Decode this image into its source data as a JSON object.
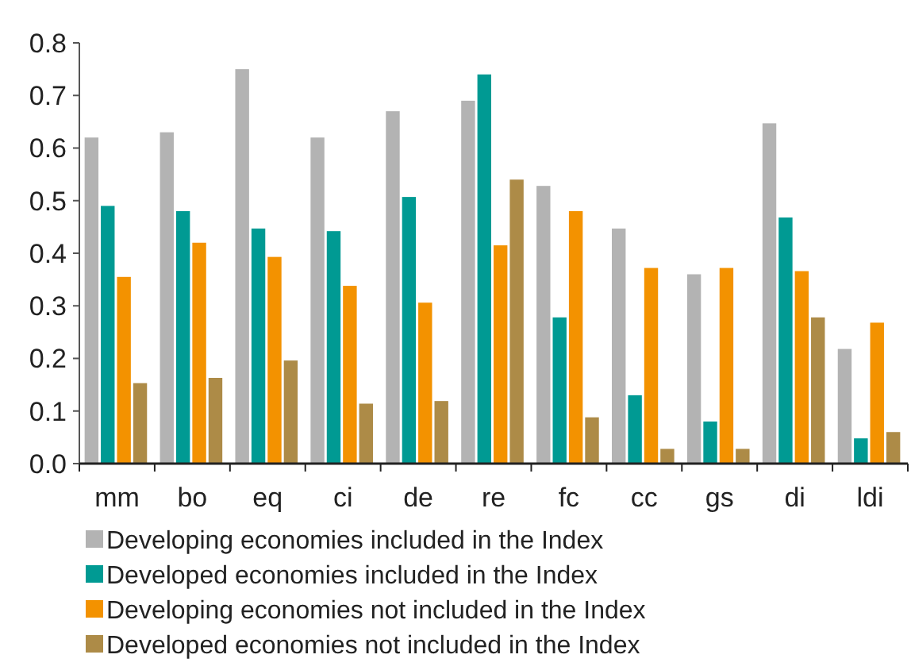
{
  "chart_data": {
    "type": "bar",
    "categories": [
      "mm",
      "bo",
      "eq",
      "ci",
      "de",
      "re",
      "fc",
      "cc",
      "gs",
      "di",
      "ldi"
    ],
    "series": [
      {
        "name": "Developing economies included in the Index",
        "color": "#b3b3b3",
        "values": [
          0.62,
          0.63,
          0.75,
          0.62,
          0.67,
          0.69,
          0.528,
          0.447,
          0.36,
          0.647,
          0.218
        ]
      },
      {
        "name": "Developed economies included in the Index",
        "color": "#009a93",
        "values": [
          0.49,
          0.48,
          0.447,
          0.442,
          0.507,
          0.74,
          0.278,
          0.13,
          0.08,
          0.468,
          0.048
        ]
      },
      {
        "name": "Developing economies not included in the Index",
        "color": "#f39200",
        "values": [
          0.355,
          0.42,
          0.393,
          0.338,
          0.306,
          0.415,
          0.48,
          0.372,
          0.372,
          0.366,
          0.268
        ]
      },
      {
        "name": "Developed economies not included in the Index",
        "color": "#ad8b47",
        "values": [
          0.153,
          0.163,
          0.196,
          0.114,
          0.119,
          0.54,
          0.088,
          0.028,
          0.028,
          0.278,
          0.06
        ]
      }
    ],
    "ylim": [
      0,
      0.8
    ],
    "yticks": [
      {
        "value": 0,
        "label": "0.0"
      },
      {
        "value": 0.1,
        "label": "0.1"
      },
      {
        "value": 0.2,
        "label": "0.2"
      },
      {
        "value": 0.3,
        "label": "0.3"
      },
      {
        "value": 0.4,
        "label": "0.4"
      },
      {
        "value": 0.5,
        "label": "0.5"
      },
      {
        "value": 0.6,
        "label": "0.6"
      },
      {
        "value": 0.7,
        "label": "0.7"
      },
      {
        "value": 0.8,
        "label": "0.8"
      }
    ],
    "grid": false,
    "legend": "bottom"
  }
}
